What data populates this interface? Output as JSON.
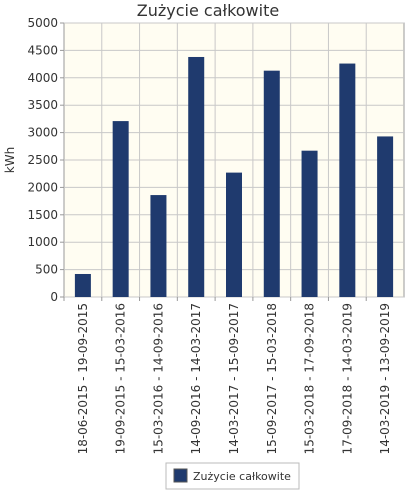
{
  "chart_data": {
    "type": "bar",
    "title": "Zużycie całkowite",
    "ylabel": "kWh",
    "xlabel": "",
    "ylim": [
      0,
      5000
    ],
    "yticks": [
      0,
      500,
      1000,
      1500,
      2000,
      2500,
      3000,
      3500,
      4000,
      4500,
      5000
    ],
    "categories": [
      "18-06-2015 - 19-09-2015",
      "19-09-2015 - 15-03-2016",
      "15-03-2016 - 14-09-2016",
      "14-09-2016 - 14-03-2017",
      "14-03-2017 - 15-09-2017",
      "15-09-2017 - 15-03-2018",
      "15-03-2018 - 17-09-2018",
      "17-09-2018 - 14-03-2019",
      "14-03-2019 - 13-09-2019"
    ],
    "series": [
      {
        "name": "Zużycie całkowite",
        "values": [
          420,
          3210,
          1860,
          4380,
          2270,
          4130,
          2670,
          4260,
          2930
        ]
      }
    ],
    "grid": true,
    "legend_position": "bottom",
    "colors": {
      "bar": "#1f3a6e",
      "plot_bg": "#fffdf2",
      "grid": "#c8c8c8",
      "border": "#999999"
    }
  }
}
